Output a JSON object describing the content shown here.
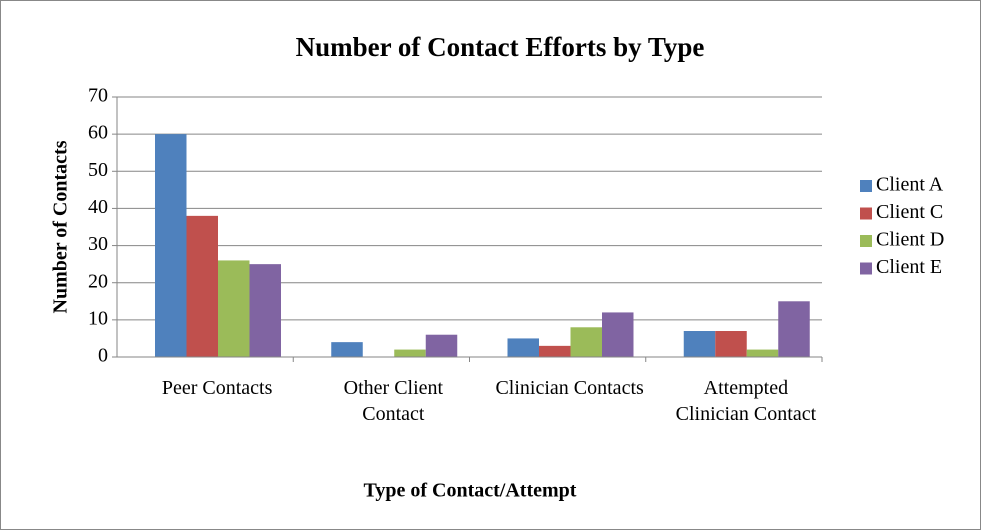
{
  "chart_data": {
    "type": "bar",
    "title": "Number of Contact Efforts by Type",
    "x_label": "Type of Contact/Attempt",
    "y_label": "Number of Contacts",
    "categories": [
      "Peer Contacts",
      "Other Client Contact",
      "Clinician Contacts",
      "Attempted Clinician Contact"
    ],
    "series": [
      {
        "name": "Client A",
        "color": "#4f81bd",
        "values": [
          60,
          4,
          5,
          7
        ]
      },
      {
        "name": "Client C",
        "color": "#c0504d",
        "values": [
          38,
          0,
          3,
          7
        ]
      },
      {
        "name": "Client D",
        "color": "#9bbb59",
        "values": [
          26,
          2,
          8,
          2
        ]
      },
      {
        "name": "Client E",
        "color": "#8064a2",
        "values": [
          25,
          6,
          12,
          15
        ]
      }
    ],
    "ylim": [
      0,
      70
    ],
    "yticks": [
      0,
      10,
      20,
      30,
      40,
      50,
      60,
      70
    ],
    "grid": true,
    "legend": "right"
  }
}
